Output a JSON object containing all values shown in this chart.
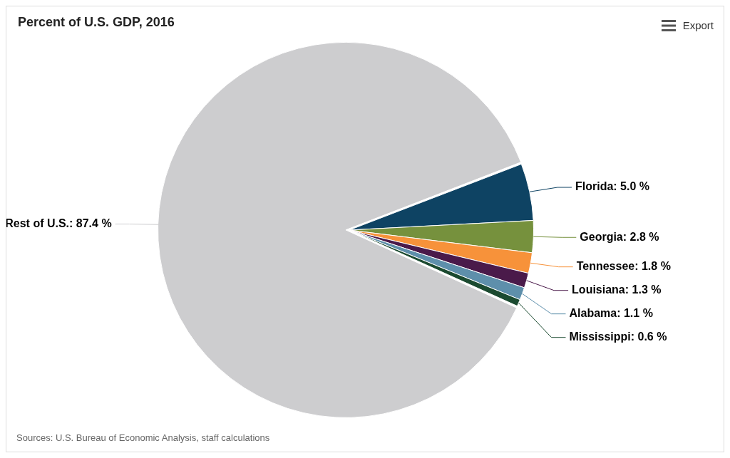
{
  "chart_data": {
    "type": "pie",
    "title": "Percent of U.S. GDP, 2016",
    "categories": [
      "Florida",
      "Georgia",
      "Tennessee",
      "Louisiana",
      "Alabama",
      "Mississippi",
      "Rest of U.S."
    ],
    "values": [
      5.0,
      2.8,
      1.8,
      1.3,
      1.1,
      0.6,
      87.4
    ],
    "colors": [
      "#0e4363",
      "#76913d",
      "#f7923a",
      "#4a1a4a",
      "#5e8fab",
      "#1b4a30",
      "#cdcdcf"
    ],
    "value_labels": [
      "5.0 %",
      "2.8 %",
      "1.8 %",
      "1.3 %",
      "1.1 %",
      "0.6 %",
      "87.4 %"
    ],
    "legend": false,
    "annotations": [
      "Export",
      "Sources: U.S. Bureau of Economic Analysis, staff calculations"
    ]
  }
}
